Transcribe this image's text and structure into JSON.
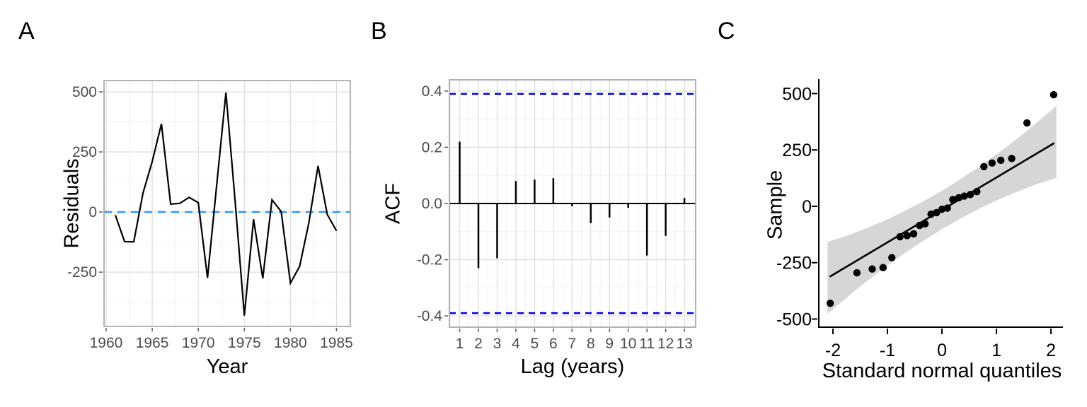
{
  "colors": {
    "background": "#FFFFFF",
    "grid_major": "#DEDEDE",
    "grid_minor": "#EFEFEF",
    "panel_border": "#ABABAB",
    "tick_mark": "#666666",
    "tick_label": "#4D4D4D",
    "series_black": "#000000",
    "ref_blue_light": "#3399FF",
    "ref_blue_dark": "#0000DD",
    "band_gray": "#D6D6D6"
  },
  "chart_data": [
    {
      "panel": "A",
      "type": "line",
      "xlabel": "Year",
      "ylabel": "Residuals",
      "x": [
        1961,
        1962,
        1963,
        1964,
        1965,
        1966,
        1967,
        1968,
        1969,
        1970,
        1971,
        1972,
        1973,
        1974,
        1975,
        1976,
        1977,
        1978,
        1979,
        1980,
        1981,
        1982,
        1983,
        1984,
        1985
      ],
      "y": [
        -13,
        -123,
        -124,
        79,
        210,
        367,
        33,
        36,
        61,
        39,
        -274,
        113,
        497,
        45,
        -431,
        -30,
        -276,
        51,
        2,
        -296,
        -226,
        -45,
        192,
        -10,
        -78
      ],
      "x_ticks": [
        1960,
        1965,
        1970,
        1975,
        1980,
        1985
      ],
      "y_ticks": [
        -250,
        0,
        250,
        500
      ],
      "x_tick_labels": [
        "1960",
        "1965",
        "1970",
        "1975",
        "1980",
        "1985"
      ],
      "y_tick_labels": [
        "-250",
        "0",
        "250",
        "500"
      ],
      "x_minor": [
        1962.5,
        1967.5,
        1972.5,
        1977.5,
        1982.5
      ],
      "y_minor": [
        -375,
        -125,
        125,
        375
      ],
      "xlim": [
        1959.77,
        1986.5
      ],
      "ylim": [
        -476,
        547
      ],
      "hline": {
        "y": 0,
        "color": "#3399FF",
        "style": "dashed"
      }
    },
    {
      "panel": "B",
      "type": "bar",
      "xlabel": "Lag (years)",
      "ylabel": "ACF",
      "categories": [
        1,
        2,
        3,
        4,
        5,
        6,
        7,
        8,
        9,
        10,
        11,
        12,
        13
      ],
      "values": [
        0.22,
        -0.23,
        -0.195,
        0.08,
        0.085,
        0.09,
        -0.01,
        -0.07,
        -0.05,
        -0.015,
        -0.185,
        -0.115,
        0.02
      ],
      "conf_bound": 0.39,
      "conf_color": "#0000DD",
      "x_ticks": [
        1,
        2,
        3,
        4,
        5,
        6,
        7,
        8,
        9,
        10,
        11,
        12,
        13
      ],
      "x_tick_labels": [
        "1",
        "2",
        "3",
        "4",
        "5",
        "6",
        "7",
        "8",
        "9",
        "10",
        "11",
        "12",
        "13"
      ],
      "y_ticks": [
        -0.4,
        -0.2,
        0,
        0.2,
        0.4
      ],
      "y_tick_labels": [
        "-0.4",
        "-0.2",
        "0.0",
        "0.2",
        "0.4"
      ],
      "x_minor": [
        0.5,
        1.5,
        2.5,
        3.5,
        4.5,
        5.5,
        6.5,
        7.5,
        8.5,
        9.5,
        10.5,
        11.5,
        12.5,
        13.5
      ],
      "y_minor": [
        -0.3,
        -0.1,
        0.1,
        0.3
      ],
      "xlim": [
        0.45,
        13.6
      ],
      "ylim": [
        -0.44,
        0.44
      ]
    },
    {
      "panel": "C",
      "type": "scatter",
      "xlabel": "Standard normal quantiles",
      "ylabel": "Sample",
      "x": [
        -2.05,
        -1.56,
        -1.28,
        -1.08,
        -0.92,
        -0.77,
        -0.64,
        -0.52,
        -0.41,
        -0.31,
        -0.2,
        -0.1,
        0,
        0.1,
        0.2,
        0.31,
        0.41,
        0.52,
        0.64,
        0.77,
        0.92,
        1.08,
        1.28,
        1.56,
        2.05
      ],
      "y": [
        -430,
        -295,
        -278,
        -272,
        -228,
        -135,
        -130,
        -122,
        -85,
        -78,
        -35,
        -28,
        -13,
        -8,
        30,
        38,
        45,
        52,
        65,
        176,
        192,
        204,
        212,
        370,
        495
      ],
      "fit_line": {
        "slope": 143.9,
        "intercept": -16,
        "x_range": [
          -2.06,
          2.06
        ]
      },
      "band": {
        "q": [
          -2.1,
          -1.75,
          -1.4,
          -1.05,
          -0.7,
          -0.35,
          0.0,
          0.35,
          0.7,
          1.05,
          1.4,
          1.75,
          2.1
        ],
        "upper": [
          -158,
          -131,
          -99,
          -63,
          -23,
          21,
          69,
          122,
          178,
          239,
          304,
          373,
          446
        ],
        "lower": [
          -478,
          -405,
          -336,
          -271,
          -210,
          -154,
          -101,
          -53,
          -9,
          31,
          67,
          99,
          126
        ]
      },
      "x_ticks": [
        -2,
        -1,
        0,
        1,
        2
      ],
      "x_tick_labels": [
        "-2",
        "-1",
        "0",
        "1",
        "2"
      ],
      "y_ticks": [
        -500,
        -250,
        0,
        250,
        500
      ],
      "y_tick_labels": [
        "-500",
        "-250",
        "0",
        "250",
        "500"
      ],
      "xlim": [
        -2.26,
        2.22
      ],
      "ylim": [
        -536,
        564
      ]
    }
  ]
}
